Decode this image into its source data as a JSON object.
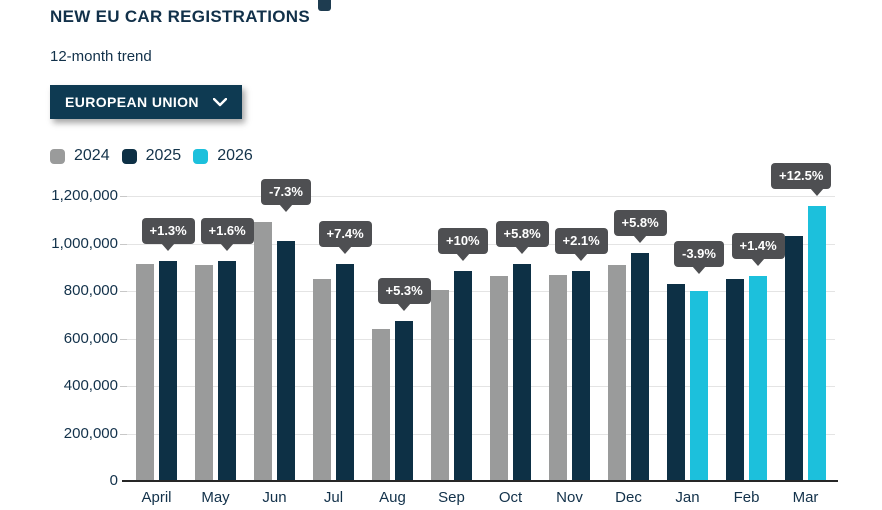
{
  "header": {
    "title": "NEW EU CAR REGISTRATIONS",
    "subtitle": "12-month trend",
    "region_selector": {
      "label": "EUROPEAN UNION",
      "icon": "chevron-down-icon"
    }
  },
  "legend": [
    {
      "label": "2024",
      "color": "#9a9b9b"
    },
    {
      "label": "2025",
      "color": "#0d3045"
    },
    {
      "label": "2026",
      "color": "#1cc0dc"
    }
  ],
  "chart_data": {
    "type": "bar",
    "title": "NEW EU CAR REGISTRATIONS",
    "subtitle": "12-month trend",
    "categories": [
      "April",
      "May",
      "Jun",
      "Jul",
      "Aug",
      "Sep",
      "Oct",
      "Nov",
      "Dec",
      "Jan",
      "Feb",
      "Mar"
    ],
    "series": [
      {
        "name": "2024",
        "color": "#9a9b9b",
        "values": [
          915000,
          910000,
          1090000,
          850000,
          640000,
          805000,
          865000,
          867000,
          908000,
          null,
          null,
          null
        ]
      },
      {
        "name": "2025",
        "color": "#0d3045",
        "values": [
          927000,
          925000,
          1010000,
          913000,
          674000,
          886000,
          915000,
          885000,
          960000,
          830000,
          850000,
          1030000
        ]
      },
      {
        "name": "2026",
        "color": "#1cc0dc",
        "values": [
          null,
          null,
          null,
          null,
          null,
          null,
          null,
          null,
          null,
          798000,
          862000,
          1158000
        ]
      }
    ],
    "bar_labels": [
      "+1.3%",
      "+1.6%",
      "-7.3%",
      "+7.4%",
      "+5.3%",
      "+10%",
      "+5.8%",
      "+2.1%",
      "+5.8%",
      "-3.9%",
      "+1.4%",
      "+12.5%"
    ],
    "ylim": [
      0,
      1200000
    ],
    "ytick_labels": [
      "1,200,000",
      "1,000,000",
      "800,000",
      "600,000",
      "400,000",
      "200,000",
      "0"
    ],
    "xlabel": "",
    "ylabel": "",
    "grid": true,
    "legend_position": "top-left"
  },
  "colors": {
    "text_dark": "#12314a",
    "button_bg": "#0e3a52",
    "tooltip_bg": "#4e4f52",
    "gridline": "#e4e4e4",
    "axis": "#262626"
  }
}
